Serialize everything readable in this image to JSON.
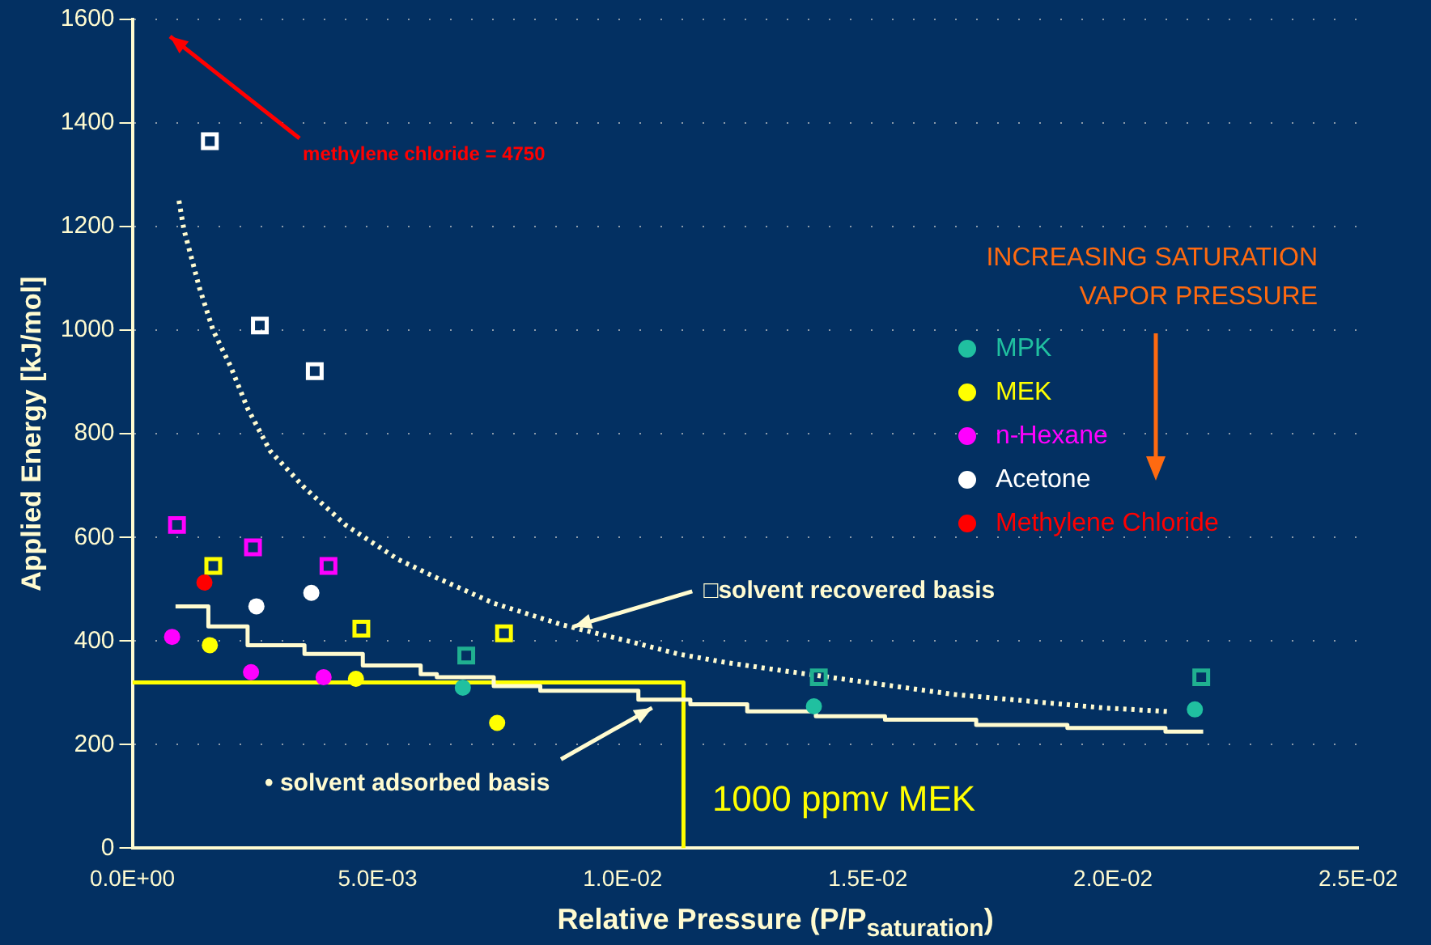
{
  "chart_data": {
    "type": "scatter",
    "xlabel": "Relative Pressure (P/P$_{saturation}$)",
    "ylabel": "Applied Energy [kJ/mol]",
    "legend_title": "INCREASING SATURATION VAPOR PRESSURE",
    "legend": "right",
    "grid": "y",
    "xlim": [
      0,
      0.025
    ],
    "xticks": [
      {
        "value": 0,
        "label": "0.0E+00"
      },
      {
        "value": 0.005,
        "label": "5.0E-03"
      },
      {
        "value": 0.01,
        "label": "1.0E-02"
      },
      {
        "value": 0.015,
        "label": "1.5E-02"
      },
      {
        "value": 0.02,
        "label": "2.0E-02"
      },
      {
        "value": 0.025,
        "label": "2.5E-02"
      }
    ],
    "ylim": [
      0,
      1600
    ],
    "yticks": [
      0,
      200,
      400,
      600,
      800,
      1000,
      1200,
      1400,
      1600
    ],
    "series": [
      {
        "name": "MPK",
        "color": "#20c0a0",
        "marker": "circle",
        "x": [
          0.00674,
          0.0139,
          0.02167
        ],
        "values": [
          310,
          274,
          268
        ]
      },
      {
        "name": "MEK",
        "color": "#ffff00",
        "marker": "circle",
        "x": [
          0.00158,
          0.00456,
          0.00744
        ],
        "values": [
          392,
          327,
          242
        ]
      },
      {
        "name": "n-Hexane",
        "color": "#ff00ff",
        "marker": "circle",
        "x": [
          0.00081,
          0.00242,
          0.0039
        ],
        "values": [
          408,
          340,
          330
        ]
      },
      {
        "name": "Acetone",
        "color": "#ffffff",
        "marker": "circle",
        "x": [
          0.00253,
          0.00365
        ],
        "values": [
          467,
          493
        ]
      },
      {
        "name": "Methylene Chloride",
        "color": "#ff0000",
        "marker": "circle",
        "x": [
          0.00147
        ],
        "values": [
          513
        ]
      },
      {
        "color": "#20b090",
        "marker": "square",
        "x": [
          0.00681,
          0.014,
          0.0218
        ],
        "values": [
          372,
          330,
          330
        ]
      },
      {
        "color": "#ffff00",
        "marker": "square",
        "x": [
          0.00165,
          0.00467,
          0.00758
        ],
        "values": [
          545,
          424,
          415
        ]
      },
      {
        "color": "#ff00ff",
        "marker": "square",
        "x": [
          0.00091,
          0.00246,
          0.004
        ],
        "values": [
          624,
          581,
          545
        ]
      },
      {
        "color": "#ffffff",
        "marker": "square",
        "x": [
          0.00158,
          0.0026,
          0.00372
        ],
        "values": [
          1365,
          1009,
          921
        ]
      },
      {
        "type": "line",
        "color": "#fffbd0",
        "marker": "none",
        "line_style": "dotted",
        "x": [
          0.00095,
          0.00105,
          0.00137,
          0.00165,
          0.002,
          0.00235,
          0.00281,
          0.00351,
          0.00435,
          0.00541,
          0.00621,
          0.00737,
          0.00878,
          0.01032,
          0.01113,
          0.01208,
          0.01324,
          0.01675,
          0.0198,
          0.0211
        ],
        "values": [
          1250,
          1195,
          1081,
          999,
          931,
          849,
          767,
          696,
          624,
          558,
          522,
          473,
          431,
          395,
          375,
          359,
          343,
          297,
          271,
          264
        ]
      },
      {
        "type": "step",
        "color": "#fffbd0",
        "marker": "none",
        "line_style": "solid",
        "x": [
          0.00088,
          0.00155,
          0.00235,
          0.00351,
          0.0047,
          0.00588,
          0.00621,
          0.00737,
          0.00832,
          0.01032,
          0.01138,
          0.01254,
          0.01394,
          0.01535,
          0.01721,
          0.01907,
          0.02107,
          0.02184
        ],
        "values": [
          467,
          428,
          392,
          375,
          353,
          336,
          330,
          313,
          304,
          287,
          278,
          264,
          255,
          248,
          238,
          232,
          225,
          225
        ]
      },
      {
        "type": "line",
        "color": "#ffff00",
        "marker": "none",
        "line_style": "solid",
        "x": [
          0.01124,
          0.01124,
          0
        ],
        "values": [
          0,
          320,
          320
        ]
      }
    ],
    "annotations": [
      "methylene chloride = 4750",
      {
        "text": "□solvent recovered basis",
        "x": 0.009,
        "y": 428
      },
      {
        "text": "• solvent adsorbed basis",
        "x": 0.0106,
        "y": 271
      },
      "1000 ppmv MEK"
    ]
  }
}
